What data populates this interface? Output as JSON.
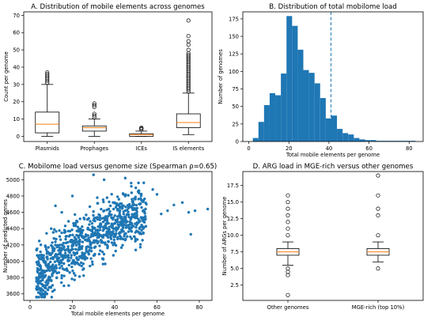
{
  "chart_data": [
    {
      "type": "boxplot",
      "title": "A. Distribution of mobile elements across genomes",
      "xlabel": "",
      "ylabel": "Count per genome",
      "ylim": [
        -3,
        72
      ],
      "yticks": [
        0,
        10,
        20,
        30,
        40,
        50,
        60,
        70
      ],
      "categories": [
        "Plasmids",
        "Prophages",
        "ICEs",
        "IS elements"
      ],
      "boxes": [
        {
          "whislo": 0,
          "q1": 2,
          "median": 7,
          "q3": 14,
          "whishi": 30,
          "fliers": [
            31,
            32,
            33,
            34,
            35,
            36,
            37
          ]
        },
        {
          "whislo": 0,
          "q1": 3,
          "median": 5,
          "q3": 6,
          "whishi": 10,
          "fliers": [
            11,
            12,
            13,
            17,
            18,
            19
          ]
        },
        {
          "whislo": 0,
          "q1": 0,
          "median": 1,
          "q3": 1.5,
          "whishi": 3,
          "fliers": [
            4,
            4.5,
            5
          ]
        },
        {
          "whislo": 1,
          "q1": 5,
          "median": 8,
          "q3": 13,
          "whishi": 25,
          "fliers": [
            26,
            27,
            28,
            29,
            30,
            31,
            32,
            33,
            34,
            35,
            36,
            37,
            38,
            39,
            40,
            41,
            42,
            43,
            44,
            45,
            46,
            47,
            48,
            50,
            53,
            55,
            58,
            67
          ]
        }
      ]
    },
    {
      "type": "histogram",
      "title": "B. Distribution of total mobilome load",
      "xlabel": "Total mobile elements per genome",
      "ylabel": "Number of genomes",
      "xlim": [
        -3,
        87
      ],
      "ylim": [
        0,
        185
      ],
      "xticks": [
        0,
        20,
        40,
        60,
        80
      ],
      "yticks": [
        0,
        25,
        50,
        75,
        100,
        125,
        150,
        175
      ],
      "bins": [
        {
          "x0": 2.0,
          "x1": 4.8,
          "count": 5
        },
        {
          "x0": 4.8,
          "x1": 7.6,
          "count": 28
        },
        {
          "x0": 7.6,
          "x1": 10.4,
          "count": 52
        },
        {
          "x0": 10.4,
          "x1": 13.2,
          "count": 69
        },
        {
          "x0": 13.2,
          "x1": 16.0,
          "count": 66
        },
        {
          "x0": 16.0,
          "x1": 18.8,
          "count": 97
        },
        {
          "x0": 18.8,
          "x1": 21.6,
          "count": 179
        },
        {
          "x0": 21.6,
          "x1": 24.4,
          "count": 165
        },
        {
          "x0": 24.4,
          "x1": 27.2,
          "count": 131
        },
        {
          "x0": 27.2,
          "x1": 30.0,
          "count": 102
        },
        {
          "x0": 30.0,
          "x1": 32.8,
          "count": 98
        },
        {
          "x0": 32.8,
          "x1": 35.6,
          "count": 83
        },
        {
          "x0": 35.6,
          "x1": 38.4,
          "count": 62
        },
        {
          "x0": 38.4,
          "x1": 41.2,
          "count": 33
        },
        {
          "x0": 41.2,
          "x1": 44.0,
          "count": 37
        },
        {
          "x0": 44.0,
          "x1": 46.8,
          "count": 18
        },
        {
          "x0": 46.8,
          "x1": 49.6,
          "count": 12
        },
        {
          "x0": 49.6,
          "x1": 52.4,
          "count": 10
        },
        {
          "x0": 52.4,
          "x1": 55.2,
          "count": 5
        },
        {
          "x0": 55.2,
          "x1": 58.0,
          "count": 3
        },
        {
          "x0": 58.0,
          "x1": 60.8,
          "count": 2
        },
        {
          "x0": 60.8,
          "x1": 63.6,
          "count": 2
        },
        {
          "x0": 63.6,
          "x1": 66.4,
          "count": 1
        },
        {
          "x0": 66.4,
          "x1": 69.2,
          "count": 1
        },
        {
          "x0": 69.2,
          "x1": 72.0,
          "count": 1
        },
        {
          "x0": 72.0,
          "x1": 74.8,
          "count": 1
        },
        {
          "x0": 74.8,
          "x1": 77.6,
          "count": 1
        },
        {
          "x0": 77.6,
          "x1": 80.4,
          "count": 1
        },
        {
          "x0": 80.4,
          "x1": 83.2,
          "count": 1
        }
      ],
      "reference_line": {
        "x": 41,
        "style": "dashed"
      },
      "bar_color": "#1f77b4"
    },
    {
      "type": "scatter",
      "title": "C. Mobilome load versus genome size (Spearman ρ=0.65)",
      "xlabel": "Total mobile elements per genome",
      "ylabel": "Number of predicted genes",
      "xlim": [
        -3,
        86
      ],
      "ylim": [
        3520,
        5100
      ],
      "xticks": [
        0,
        20,
        40,
        60,
        80
      ],
      "yticks": [
        3600,
        3800,
        4000,
        4200,
        4400,
        4600,
        4800,
        5000
      ],
      "marker_color": "#1f77b4",
      "sample_points": [
        [
          5,
          3640
        ],
        [
          6,
          3700
        ],
        [
          8,
          3600
        ],
        [
          10,
          3760
        ],
        [
          12,
          3880
        ],
        [
          14,
          3980
        ],
        [
          16,
          4050
        ],
        [
          18,
          4150
        ],
        [
          20,
          4200
        ],
        [
          22,
          4320
        ],
        [
          25,
          4380
        ],
        [
          28,
          4450
        ],
        [
          30,
          4500
        ],
        [
          33,
          4560
        ],
        [
          35,
          4620
        ],
        [
          38,
          4680
        ],
        [
          40,
          4720
        ],
        [
          42,
          4760
        ],
        [
          45,
          4800
        ],
        [
          48,
          4840
        ],
        [
          50,
          4900
        ],
        [
          30,
          5060
        ],
        [
          35,
          5000
        ],
        [
          45,
          5020
        ],
        [
          52,
          4700
        ],
        [
          55,
          4700
        ],
        [
          58,
          4880
        ],
        [
          60,
          4820
        ],
        [
          62,
          4580
        ],
        [
          65,
          4620
        ],
        [
          68,
          4690
        ],
        [
          72,
          4720
        ],
        [
          75,
          4600
        ],
        [
          78,
          4620
        ],
        [
          76,
          4330
        ],
        [
          84,
          4640
        ],
        [
          3,
          4140
        ],
        [
          5,
          3900
        ],
        [
          10,
          4400
        ],
        [
          15,
          4600
        ],
        [
          12,
          4680
        ],
        [
          20,
          4800
        ]
      ]
    },
    {
      "type": "boxplot",
      "title": "D. ARG load in MGE-rich versus other genomes",
      "xlabel": "",
      "ylabel": "Number of ARGs per genome",
      "ylim": [
        0.2,
        19.6
      ],
      "yticks": [
        2.5,
        5.0,
        7.5,
        10.0,
        12.5,
        15.0,
        17.5
      ],
      "ytick_labels": [
        "2.5",
        "5.0",
        "7.5",
        "10.0",
        "12.5",
        "15.0",
        "17.5"
      ],
      "categories": [
        "Other genomes",
        "MGE-rich (top 10%)"
      ],
      "boxes": [
        {
          "whislo": 5.5,
          "q1": 7,
          "median": 7.5,
          "q3": 8,
          "whishi": 9,
          "fliers": [
            1,
            4,
            4.5,
            5,
            10,
            11,
            12,
            13,
            14,
            15,
            16
          ]
        },
        {
          "whislo": 6,
          "q1": 7,
          "median": 7.5,
          "q3": 8,
          "whishi": 9,
          "fliers": [
            5,
            10,
            13,
            14,
            16,
            19
          ]
        }
      ]
    }
  ]
}
